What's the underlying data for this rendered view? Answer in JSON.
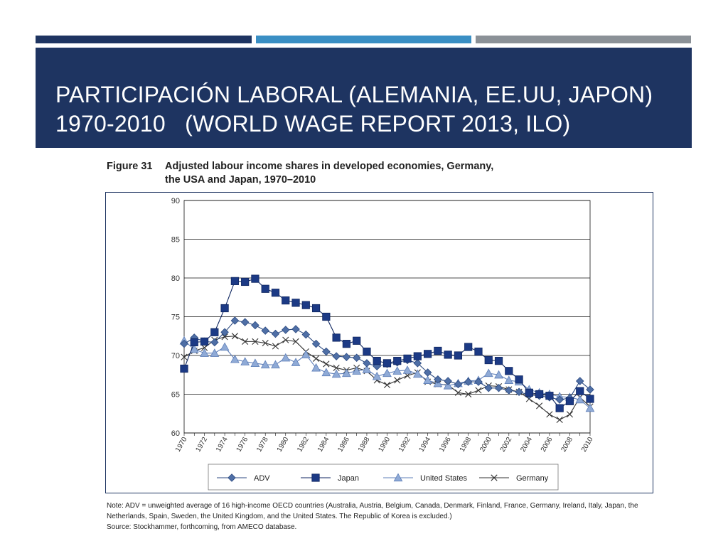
{
  "slide": {
    "title_line1": "Participación laboral (Alemania, EE.UU, Japon)",
    "title_line2": "1970-2010   (World Wage Report 2013, ILO)",
    "accent_colors": [
      "#1e3461",
      "#3a8fc4",
      "#8b9197"
    ],
    "header_color": "#1e3461"
  },
  "figure": {
    "label": "Figure 31",
    "caption_line1": "Adjusted labour income shares in developed economies, Germany,",
    "caption_line2": "the USA and Japan, 1970–2010",
    "note": "Note: ADV = unweighted average of 16 high-income OECD countries (Australia, Austria, Belgium, Canada, Denmark, Finland, France, Germany, Ireland, Italy, Japan, the Netherlands, Spain, Sweden, the United Kingdom, and the United States. The Republic of Korea is excluded.)",
    "source": "Source: Stockhammer, forthcoming, from AMECO database."
  },
  "chart_data": {
    "type": "line",
    "title": "Adjusted labour income shares in developed economies, Germany, the USA and Japan, 1970–2010",
    "xlabel": "",
    "ylabel": "",
    "ylim": [
      60,
      90
    ],
    "yticks": [
      60,
      65,
      70,
      75,
      80,
      85,
      90
    ],
    "xticks": [
      "1970",
      "1972",
      "1974",
      "1976",
      "1978",
      "1980",
      "1982",
      "1984",
      "1986",
      "1988",
      "1990",
      "1992",
      "1994",
      "1996",
      "1998",
      "2000",
      "2002",
      "2004",
      "2006",
      "2008",
      "2010"
    ],
    "x": [
      1970,
      1971,
      1972,
      1973,
      1974,
      1975,
      1976,
      1977,
      1978,
      1979,
      1980,
      1981,
      1982,
      1983,
      1984,
      1985,
      1986,
      1987,
      1988,
      1989,
      1990,
      1991,
      1992,
      1993,
      1994,
      1995,
      1996,
      1997,
      1998,
      1999,
      2000,
      2001,
      2002,
      2003,
      2004,
      2005,
      2006,
      2007,
      2008,
      2009,
      2010
    ],
    "grid": "horizontal",
    "legend_position": "bottom",
    "series": [
      {
        "name": "ADV",
        "marker": "diamond",
        "color": "#4f6fa6",
        "stroke": "#2c4a80",
        "values": [
          71.5,
          72.3,
          71.8,
          71.7,
          73.0,
          74.5,
          74.3,
          73.9,
          73.2,
          72.8,
          73.3,
          73.4,
          72.7,
          71.5,
          70.5,
          69.9,
          69.8,
          69.7,
          69.0,
          68.6,
          68.9,
          69.1,
          69.4,
          69.0,
          67.8,
          66.9,
          66.7,
          66.3,
          66.6,
          66.6,
          65.8,
          65.8,
          65.5,
          65.3,
          64.9,
          64.8,
          64.6,
          64.3,
          64.5,
          66.7,
          65.6
        ]
      },
      {
        "name": "Japan",
        "marker": "square",
        "color": "#1c3a85",
        "stroke": "#0f2660",
        "values": [
          68.3,
          71.7,
          71.8,
          73.0,
          76.1,
          79.6,
          79.5,
          79.9,
          78.6,
          78.1,
          77.1,
          76.8,
          76.5,
          76.1,
          75.0,
          72.3,
          71.5,
          71.9,
          70.5,
          69.3,
          69.0,
          69.3,
          69.6,
          69.9,
          70.2,
          70.6,
          70.1,
          70.0,
          71.1,
          70.5,
          69.4,
          69.3,
          68.0,
          66.9,
          65.2,
          65.0,
          64.8,
          63.2,
          64.1,
          65.4,
          64.4
        ]
      },
      {
        "name": "United States",
        "marker": "triangle",
        "color": "#8faad6",
        "stroke": "#5f7fb8",
        "values": [
          71.9,
          70.8,
          70.3,
          70.3,
          71.1,
          69.5,
          69.2,
          69.0,
          68.8,
          68.8,
          69.7,
          69.1,
          70.1,
          68.4,
          67.8,
          67.6,
          67.7,
          68.0,
          68.2,
          67.3,
          67.7,
          68.0,
          68.1,
          67.6,
          66.8,
          66.4,
          66.1,
          66.4,
          66.7,
          66.8,
          67.7,
          67.5,
          66.8,
          66.6,
          65.6,
          65.2,
          65.0,
          64.7,
          64.6,
          64.3,
          63.2
        ]
      },
      {
        "name": "Germany",
        "marker": "x",
        "color": "#333333",
        "stroke": "#333333",
        "values": [
          69.8,
          70.6,
          71.0,
          72.0,
          72.4,
          72.5,
          71.8,
          71.8,
          71.6,
          71.2,
          72.0,
          71.8,
          70.5,
          69.6,
          68.9,
          68.4,
          68.1,
          68.4,
          68.0,
          66.8,
          66.2,
          66.8,
          67.4,
          67.8,
          66.6,
          66.3,
          66.2,
          65.2,
          65.0,
          65.5,
          66.1,
          66.0,
          65.6,
          65.3,
          64.4,
          63.5,
          62.4,
          61.7,
          62.4,
          64.6,
          63.4
        ]
      }
    ]
  }
}
